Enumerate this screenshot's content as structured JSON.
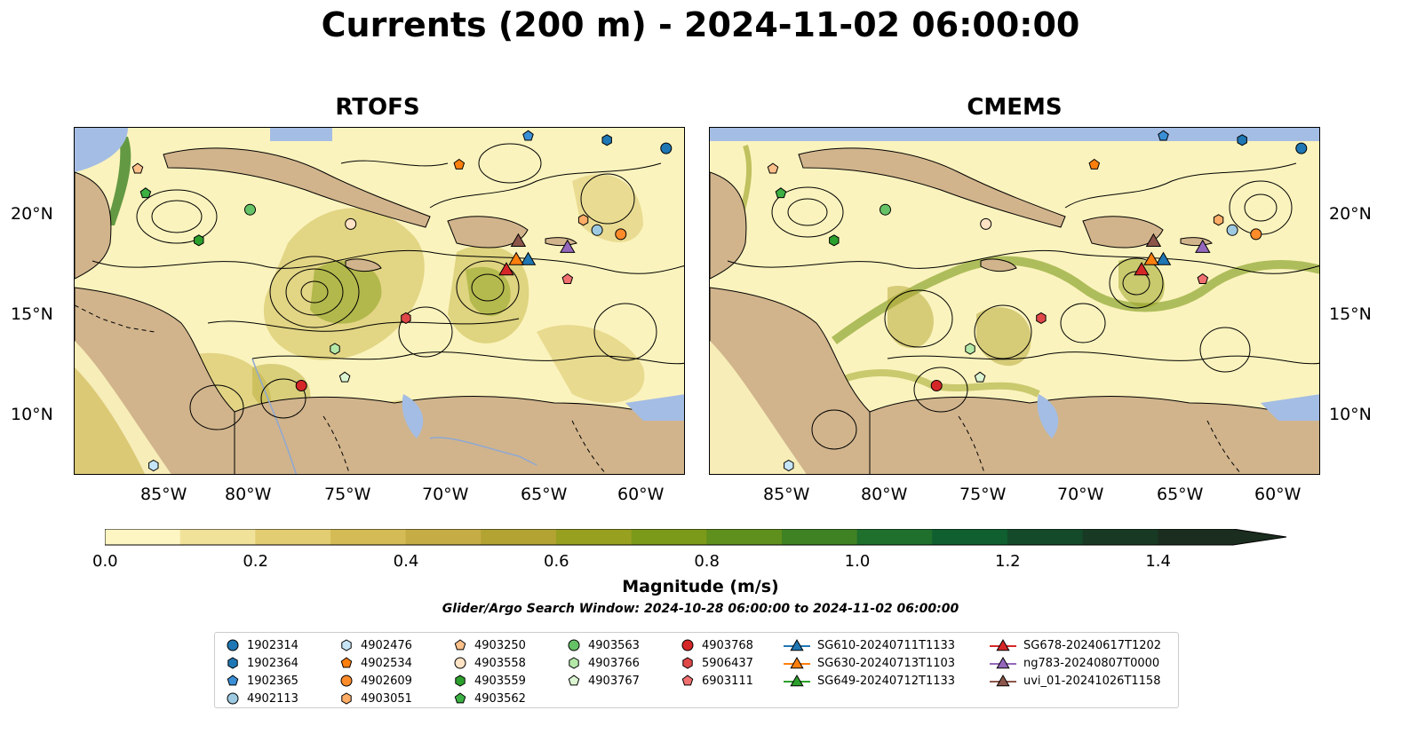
{
  "title": "Currents (200 m) - 2024-11-02 06:00:00",
  "panels": [
    {
      "title": "RTOFS"
    },
    {
      "title": "CMEMS"
    }
  ],
  "axes": {
    "lon_ticks": [
      "85°W",
      "80°W",
      "75°W",
      "70°W",
      "65°W",
      "60°W"
    ],
    "lat_ticks": [
      "20°N",
      "15°N",
      "10°N"
    ]
  },
  "colorbar": {
    "label": "Magnitude (m/s)",
    "ticks": [
      "0.0",
      "0.2",
      "0.4",
      "0.6",
      "0.8",
      "1.0",
      "1.2",
      "1.4"
    ],
    "range": [
      0,
      1.5
    ],
    "extend": "max",
    "colors": [
      "#fdf6c3",
      "#f1e29a",
      "#e3cd72",
      "#d5bb55",
      "#c6ac44",
      "#b2a332",
      "#98a020",
      "#7c9a19",
      "#5f8f1c",
      "#3f8224",
      "#1f6f2d",
      "#0f5f30",
      "#144a2a",
      "#183a24",
      "#1b2d1e"
    ]
  },
  "search_window": "Glider/Argo Search Window: 2024-10-28 06:00:00 to 2024-11-02 06:00:00",
  "legend": [
    {
      "label": "1902314",
      "marker": "circle",
      "color": "#1f77b4"
    },
    {
      "label": "1902364",
      "marker": "hexagon",
      "color": "#1f77b4"
    },
    {
      "label": "1902365",
      "marker": "pentagon",
      "color": "#3a8fd6"
    },
    {
      "label": "4902113",
      "marker": "circle",
      "color": "#9ecae1"
    },
    {
      "label": "4902476",
      "marker": "hexagon",
      "color": "#c6e6f7"
    },
    {
      "label": "4902534",
      "marker": "pentagon",
      "color": "#ff7f0e"
    },
    {
      "label": "4902609",
      "marker": "circle",
      "color": "#ff8c2a"
    },
    {
      "label": "4903051",
      "marker": "hexagon",
      "color": "#ffad66"
    },
    {
      "label": "4903250",
      "marker": "pentagon",
      "color": "#ffc08a"
    },
    {
      "label": "4903558",
      "marker": "circle",
      "color": "#ffe3c4"
    },
    {
      "label": "4903559",
      "marker": "hexagon",
      "color": "#2ca02c"
    },
    {
      "label": "4903562",
      "marker": "pentagon",
      "color": "#3cb043"
    },
    {
      "label": "4903563",
      "marker": "circle",
      "color": "#66c266"
    },
    {
      "label": "4903766",
      "marker": "hexagon",
      "color": "#b4e8a8"
    },
    {
      "label": "4903767",
      "marker": "pentagon",
      "color": "#dcf5d2"
    },
    {
      "label": "4903768",
      "marker": "circle",
      "color": "#d62728"
    },
    {
      "label": "5906437",
      "marker": "hexagon",
      "color": "#e04848"
    },
    {
      "label": "6903111",
      "marker": "pentagon",
      "color": "#f07070"
    },
    {
      "label": "SG610-20240711T1133",
      "marker": "triangle",
      "color": "#1f77b4"
    },
    {
      "label": "SG630-20240713T1103",
      "marker": "triangle",
      "color": "#ff7f0e"
    },
    {
      "label": "SG649-20240712T1133",
      "marker": "triangle",
      "color": "#2ca02c"
    },
    {
      "label": "SG678-20240617T1202",
      "marker": "triangle",
      "color": "#d62728"
    },
    {
      "label": "ng783-20240807T0000",
      "marker": "triangle",
      "color": "#9467bd"
    },
    {
      "label": "uvi_01-20241026T1158",
      "marker": "triangle",
      "color": "#8c564b"
    }
  ],
  "map_extent": {
    "lon": [
      -89,
      -58
    ],
    "lat": [
      7,
      24
    ]
  },
  "markers_rtofs": [
    {
      "label": "1902314",
      "lon": -59.0,
      "lat": 23.0
    },
    {
      "label": "1902364",
      "lon": -62.0,
      "lat": 23.4
    },
    {
      "label": "1902365",
      "lon": -66.0,
      "lat": 23.6
    },
    {
      "label": "4902113",
      "lon": -62.5,
      "lat": 19.0
    },
    {
      "label": "4902476",
      "lon": -85.0,
      "lat": 7.5
    },
    {
      "label": "4902534",
      "lon": -69.5,
      "lat": 22.2
    },
    {
      "label": "4902609",
      "lon": -61.3,
      "lat": 18.8
    },
    {
      "label": "4903051",
      "lon": -63.2,
      "lat": 19.5
    },
    {
      "label": "4903250",
      "lon": -85.8,
      "lat": 22.0
    },
    {
      "label": "4903558",
      "lon": -75.0,
      "lat": 19.3
    },
    {
      "label": "4903559",
      "lon": -82.7,
      "lat": 18.5
    },
    {
      "label": "4903562",
      "lon": -85.4,
      "lat": 20.8
    },
    {
      "label": "4903563",
      "lon": -80.1,
      "lat": 20.0
    },
    {
      "label": "4903766",
      "lon": -75.8,
      "lat": 13.2
    },
    {
      "label": "4903767",
      "lon": -75.3,
      "lat": 11.8
    },
    {
      "label": "4903768",
      "lon": -77.5,
      "lat": 11.4
    },
    {
      "label": "5906437",
      "lon": -72.2,
      "lat": 14.7
    },
    {
      "label": "6903111",
      "lon": -64.0,
      "lat": 16.6
    },
    {
      "label": "SG610-20240711T1133",
      "lon": -66.0,
      "lat": 17.6
    },
    {
      "label": "SG630-20240713T1103",
      "lon": -66.6,
      "lat": 17.6
    },
    {
      "label": "SG678-20240617T1202",
      "lon": -67.1,
      "lat": 17.1
    },
    {
      "label": "ng783-20240807T0000",
      "lon": -64.0,
      "lat": 18.2
    },
    {
      "label": "uvi_01-20241026T1158",
      "lon": -66.5,
      "lat": 18.5
    }
  ]
}
